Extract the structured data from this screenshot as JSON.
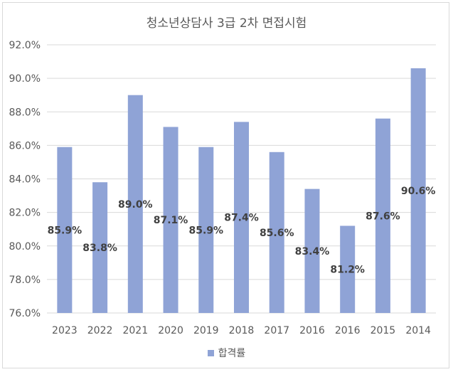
{
  "chart_data": {
    "type": "bar",
    "title": "청소년상담사 3급 2차 면접시험",
    "categories": [
      "2023",
      "2022",
      "2021",
      "2020",
      "2019",
      "2018",
      "2017",
      "2016",
      "2016",
      "2015",
      "2014"
    ],
    "series": [
      {
        "name": "합격률",
        "values": [
          85.9,
          83.8,
          89.0,
          87.1,
          85.9,
          87.4,
          85.6,
          83.4,
          81.2,
          87.6,
          90.6
        ]
      }
    ],
    "data_labels": [
      "85.9%",
      "83.8%",
      "89.0%",
      "87.1%",
      "85.9%",
      "87.4%",
      "85.6%",
      "83.4%",
      "81.2%",
      "87.6%",
      "90.6%"
    ],
    "ylim": [
      76.0,
      92.0
    ],
    "yticks": [
      "76.0%",
      "78.0%",
      "80.0%",
      "82.0%",
      "84.0%",
      "86.0%",
      "88.0%",
      "90.0%",
      "92.0%"
    ],
    "ytick_values": [
      76,
      78,
      80,
      82,
      84,
      86,
      88,
      90,
      92
    ],
    "grid": true,
    "legend_position": "bottom",
    "bar_color": "#8fa3d6",
    "grid_color": "#d9d9d9",
    "xlabel": "",
    "ylabel": ""
  }
}
